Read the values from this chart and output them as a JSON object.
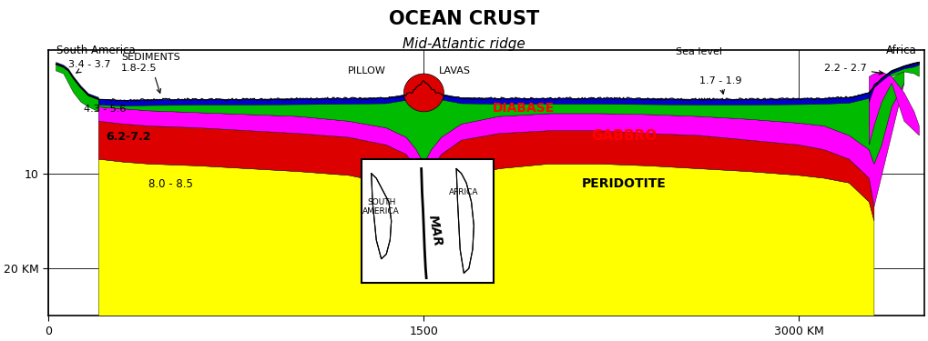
{
  "title": "OCEAN CRUST",
  "subtitle": "Mid-Atlantic ridge",
  "label_south_america": "South America",
  "label_africa": "Africa",
  "label_sea_level": "Sea level",
  "colors": {
    "yellow": "#FFFF00",
    "red": "#DD0000",
    "magenta": "#FF00FF",
    "blue": "#0000CC",
    "green": "#00BB00",
    "darkblue": "#00008B",
    "white": "#FFFFFF",
    "black": "#000000",
    "bg": "#FFFFFF"
  },
  "xlim": [
    0,
    3500
  ],
  "ylim": [
    -25,
    3
  ],
  "xticks": [
    0,
    1500,
    3000
  ],
  "xtick_labels": [
    "0",
    "1500",
    "3000 KM"
  ],
  "yticks": [
    -10,
    -20
  ],
  "ytick_labels": [
    "10",
    "20 KM"
  ]
}
